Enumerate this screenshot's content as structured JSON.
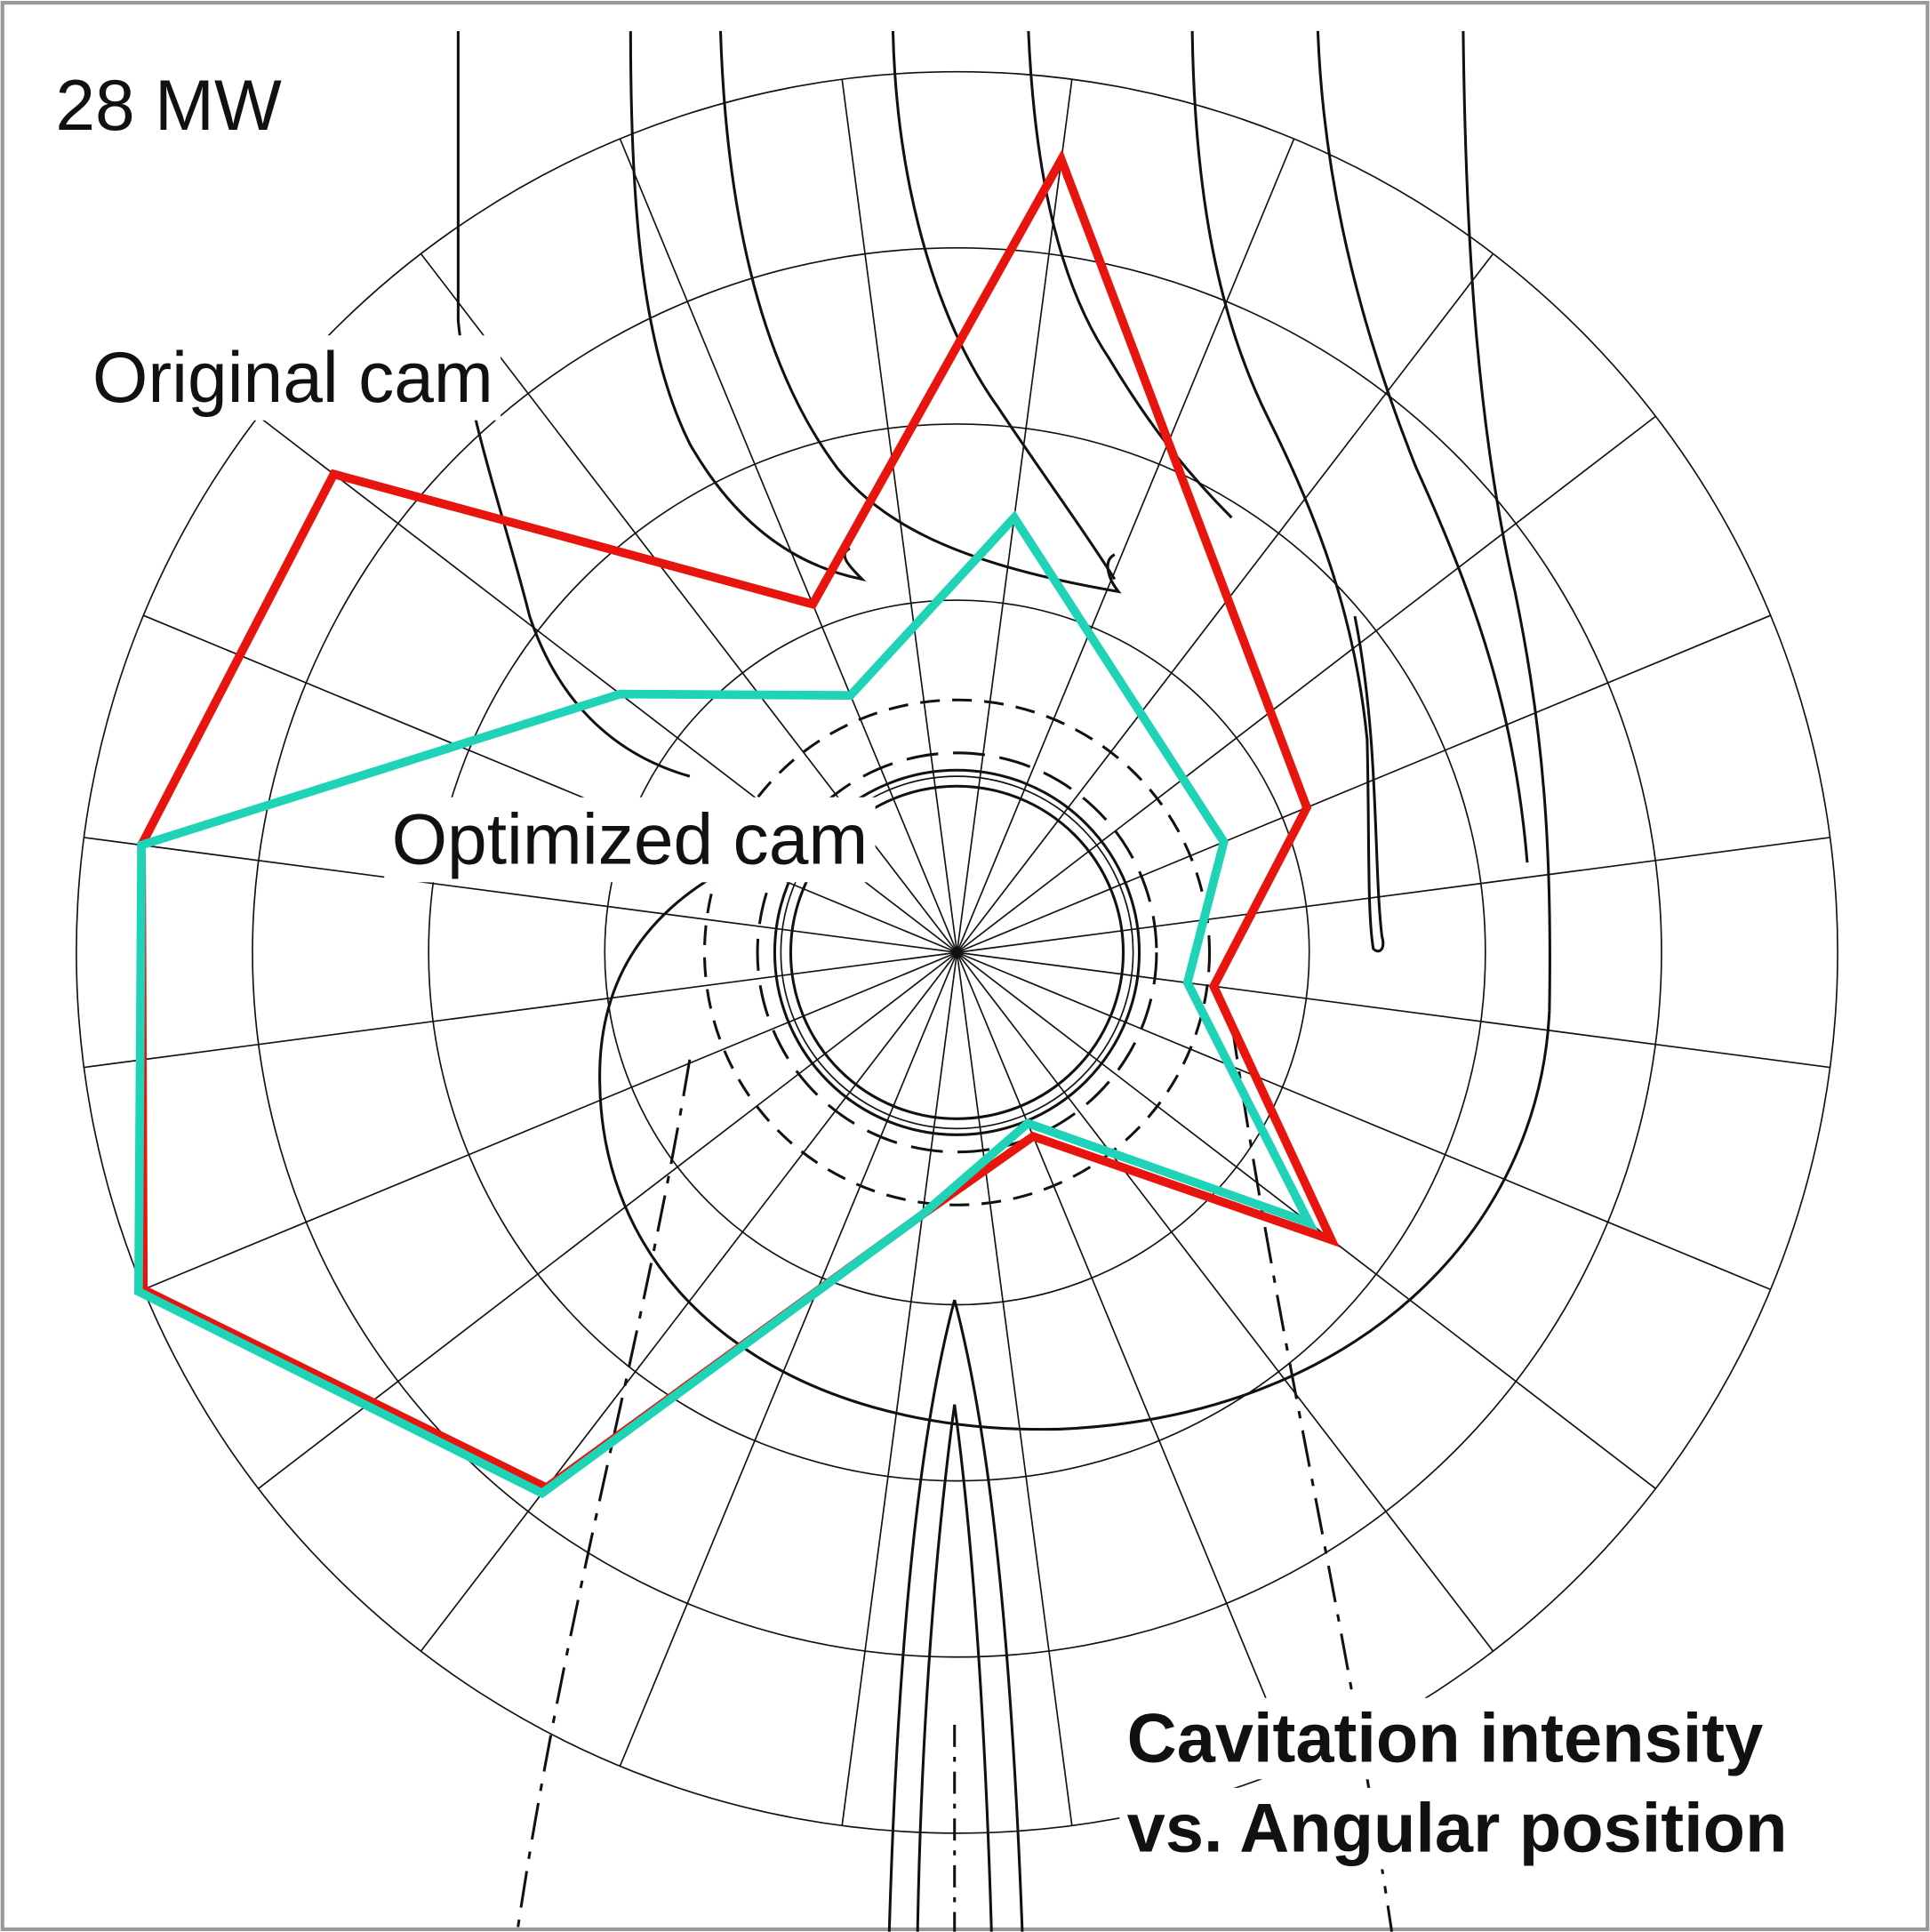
{
  "chart_data": {
    "type": "radar",
    "title": [
      "Cavitation intensity",
      "vs. Angular position"
    ],
    "annotations": [
      "28 MW",
      "Original cam",
      "Optimized cam"
    ],
    "rlim": [
      0,
      5
    ],
    "rticks": [
      1,
      2,
      3,
      4,
      5
    ],
    "spoke_step": 15,
    "spoke_offset": 7.5,
    "grid": true,
    "series": [
      {
        "name": "Original cam",
        "color": "#e8140e",
        "theta": [
          7.5,
          67.5,
          97.5,
          127.5,
          157.5,
          187.5,
          217.5,
          247.5,
          277.5,
          307.5,
          337.5
        ],
        "values": [
          4.54,
          2.15,
          1.47,
          2.68,
          1.13,
          1.5,
          3.83,
          5.0,
          4.67,
          4.46,
          2.14
        ]
      },
      {
        "name": "Optimized cam",
        "color": "#1fd3b6",
        "theta": [
          7.5,
          67.5,
          97.5,
          127.5,
          157.5,
          187.5,
          217.5,
          247.5,
          277.5,
          307.5,
          337.5
        ],
        "values": [
          2.49,
          1.64,
          1.32,
          2.52,
          1.05,
          1.5,
          3.87,
          5.03,
          4.67,
          2.41,
          1.58
        ]
      }
    ]
  }
}
